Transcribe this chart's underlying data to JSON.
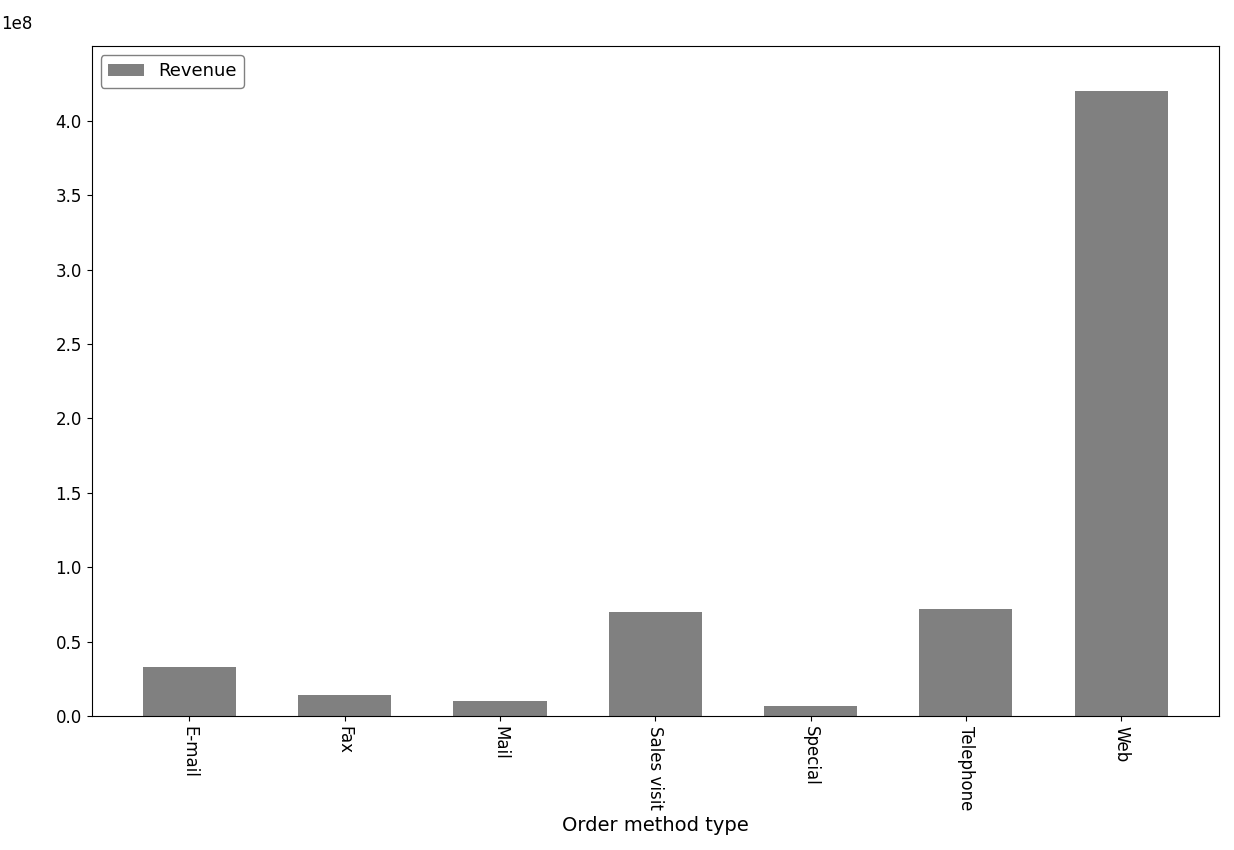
{
  "categories": [
    "E-mail",
    "Fax",
    "Mail",
    "Sales visit",
    "Special",
    "Telephone",
    "Web"
  ],
  "values": [
    33000000,
    14000000,
    10000000,
    70000000,
    7000000,
    72000000,
    420000000
  ],
  "bar_color": "#808080",
  "xlabel": "Order method type",
  "ylabel": "",
  "legend_label": "Revenue",
  "ylim": [
    0,
    450000000.0
  ],
  "yticks": [
    0,
    50000000.0,
    100000000.0,
    150000000.0,
    200000000.0,
    250000000.0,
    300000000.0,
    350000000.0,
    400000000.0
  ],
  "bar_width": 0.6,
  "xlabel_fontsize": 14,
  "tick_fontsize": 12,
  "legend_fontsize": 13,
  "background_color": "#ffffff",
  "xtick_rotation": -90,
  "figsize": [
    12.34,
    8.5
  ],
  "dpi": 100
}
